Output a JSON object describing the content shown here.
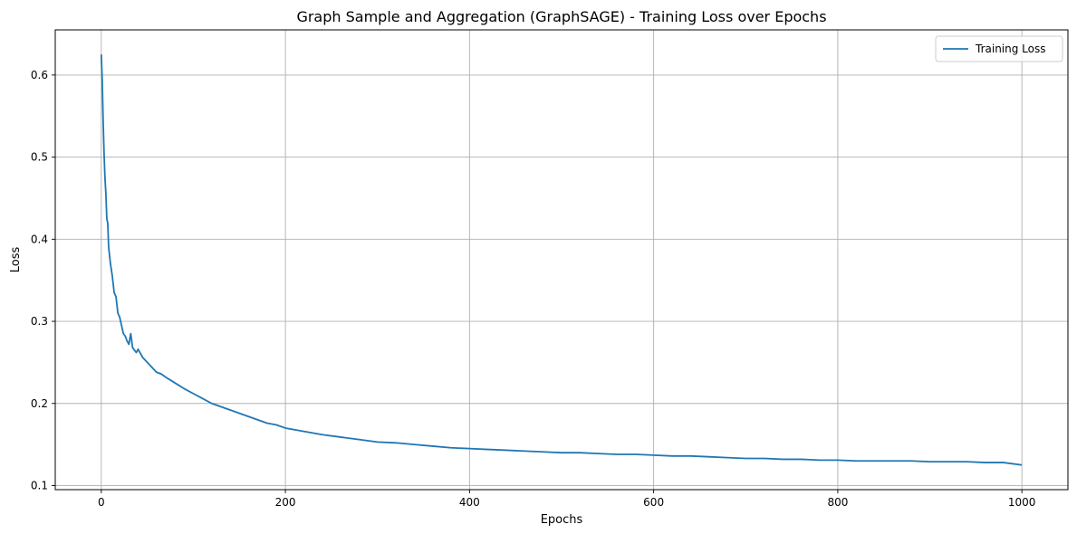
{
  "chart_data": {
    "type": "line",
    "title": "Graph Sample and Aggregation (GraphSAGE) - Training Loss over Epochs",
    "xlabel": "Epochs",
    "ylabel": "Loss",
    "xlim": [
      -50,
      1050
    ],
    "ylim": [
      0.095,
      0.655
    ],
    "xticks": [
      0,
      200,
      400,
      600,
      800,
      1000
    ],
    "xtick_labels": [
      "0",
      "200",
      "400",
      "600",
      "800",
      "1000"
    ],
    "yticks": [
      0.1,
      0.2,
      0.3,
      0.4,
      0.5,
      0.6
    ],
    "ytick_labels": [
      "0.1",
      "0.2",
      "0.3",
      "0.4",
      "0.5",
      "0.6"
    ],
    "grid": true,
    "legend_position": "top-right",
    "series": [
      {
        "name": "Training Loss",
        "color": "#1f77b4",
        "x": [
          0,
          1,
          2,
          3,
          4,
          5,
          6,
          7,
          8,
          10,
          12,
          14,
          16,
          18,
          20,
          22,
          24,
          26,
          28,
          30,
          32,
          34,
          36,
          38,
          40,
          45,
          50,
          55,
          60,
          65,
          70,
          80,
          90,
          100,
          110,
          120,
          130,
          140,
          150,
          160,
          170,
          180,
          190,
          200,
          220,
          240,
          260,
          280,
          300,
          320,
          340,
          360,
          380,
          400,
          420,
          440,
          460,
          480,
          500,
          520,
          540,
          560,
          580,
          600,
          620,
          640,
          660,
          680,
          700,
          720,
          740,
          760,
          780,
          800,
          820,
          840,
          860,
          880,
          900,
          920,
          940,
          960,
          980,
          1000
        ],
        "values": [
          0.625,
          0.595,
          0.545,
          0.505,
          0.475,
          0.455,
          0.425,
          0.42,
          0.39,
          0.37,
          0.355,
          0.335,
          0.33,
          0.31,
          0.305,
          0.295,
          0.285,
          0.282,
          0.276,
          0.272,
          0.285,
          0.268,
          0.265,
          0.262,
          0.266,
          0.256,
          0.25,
          0.244,
          0.238,
          0.236,
          0.232,
          0.225,
          0.218,
          0.212,
          0.206,
          0.2,
          0.196,
          0.192,
          0.188,
          0.184,
          0.18,
          0.176,
          0.174,
          0.17,
          0.166,
          0.162,
          0.159,
          0.156,
          0.153,
          0.152,
          0.15,
          0.148,
          0.146,
          0.145,
          0.144,
          0.143,
          0.142,
          0.141,
          0.14,
          0.14,
          0.139,
          0.138,
          0.138,
          0.137,
          0.136,
          0.136,
          0.135,
          0.134,
          0.133,
          0.133,
          0.132,
          0.132,
          0.131,
          0.131,
          0.13,
          0.13,
          0.13,
          0.13,
          0.129,
          0.129,
          0.129,
          0.128,
          0.128,
          0.125
        ]
      }
    ]
  }
}
